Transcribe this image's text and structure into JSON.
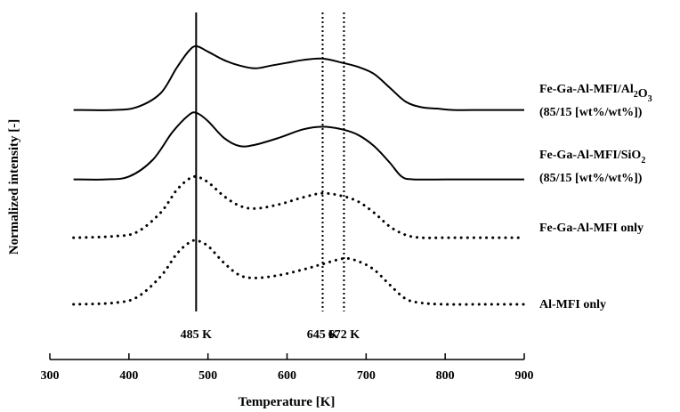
{
  "chart_data": {
    "type": "line",
    "xlabel": "Temperature [K]",
    "ylabel": "Normalized intensity [-]",
    "xlim": [
      300,
      900
    ],
    "xticks": [
      300,
      400,
      500,
      600,
      700,
      800,
      900
    ],
    "ylim": [
      0,
      100
    ],
    "grid": false,
    "legend": "right, beside each curve",
    "series": [
      {
        "name": "Fe-Ga-Al-MFI/Al2O3",
        "label_parts": [
          {
            "t": "Fe-Ga-Al-MFI/Al",
            "sub": false
          },
          {
            "t": "2",
            "sub": true
          },
          {
            "t": "O",
            "sub": false
          },
          {
            "t": "3",
            "sub": true
          }
        ],
        "label_line2": "(85/15 [wt%/wt%])",
        "style": "solid",
        "baseline": 70,
        "x": [
          330,
          380,
          410,
          440,
          460,
          475,
          485,
          500,
          520,
          540,
          560,
          580,
          600,
          620,
          645,
          670,
          690,
          710,
          730,
          750,
          770,
          790,
          810,
          850,
          900
        ],
        "y": [
          70,
          70,
          71,
          76,
          85,
          91,
          93,
          91,
          88,
          86,
          85,
          86,
          87,
          88,
          88.5,
          87,
          85.5,
          83,
          78,
          73,
          71,
          70.5,
          70,
          70,
          70
        ]
      },
      {
        "name": "Fe-Ga-Al-MFI/SiO2",
        "label_parts": [
          {
            "t": "Fe-Ga-Al-MFI/SiO",
            "sub": false
          },
          {
            "t": "2",
            "sub": true
          }
        ],
        "label_line2": "(85/15 [wt%/wt%])",
        "style": "solid",
        "baseline": 45,
        "x": [
          330,
          370,
          400,
          430,
          455,
          475,
          485,
          500,
          520,
          540,
          560,
          590,
          620,
          645,
          670,
          690,
          710,
          730,
          745,
          760,
          800,
          850,
          900
        ],
        "y": [
          45,
          45,
          46,
          52,
          62,
          68,
          69,
          66,
          60,
          57,
          57.5,
          60,
          63,
          64,
          63,
          61,
          57,
          51,
          46,
          45,
          45,
          45,
          45
        ]
      },
      {
        "name": "Fe-Ga-Al-MFI only",
        "label_parts": [
          {
            "t": "Fe-Ga-Al-MFI only",
            "sub": false
          }
        ],
        "label_line2": "",
        "style": "dotted",
        "baseline": 24,
        "x": [
          330,
          380,
          410,
          440,
          460,
          475,
          485,
          500,
          520,
          540,
          560,
          590,
          620,
          645,
          670,
          690,
          710,
          730,
          750,
          770,
          800,
          850,
          900
        ],
        "y": [
          24,
          24.5,
          26,
          33,
          41,
          45,
          46,
          44,
          39,
          35.5,
          34.5,
          36,
          38.5,
          40,
          39,
          37,
          33,
          28,
          25,
          24,
          24,
          24,
          24
        ]
      },
      {
        "name": "Al-MFI only",
        "label_parts": [
          {
            "t": "Al-MFI only",
            "sub": false
          }
        ],
        "label_line2": "",
        "style": "dotted",
        "baseline": 0,
        "x": [
          330,
          380,
          410,
          440,
          460,
          475,
          485,
          500,
          520,
          540,
          560,
          590,
          620,
          645,
          672,
          690,
          710,
          730,
          750,
          770,
          800,
          850,
          900
        ],
        "y": [
          0,
          0.5,
          2.5,
          10,
          18,
          22,
          23,
          21,
          15,
          10.5,
          9.5,
          10.5,
          12.5,
          14.5,
          16.5,
          15.5,
          12.5,
          7,
          2,
          0.5,
          0,
          0,
          0
        ]
      }
    ],
    "markers": [
      {
        "x": 485,
        "label": "485 K",
        "style": "solid"
      },
      {
        "x": 645,
        "label": "645 K",
        "style": "dotted"
      },
      {
        "x": 672,
        "label": "672 K",
        "style": "dotted"
      }
    ]
  }
}
